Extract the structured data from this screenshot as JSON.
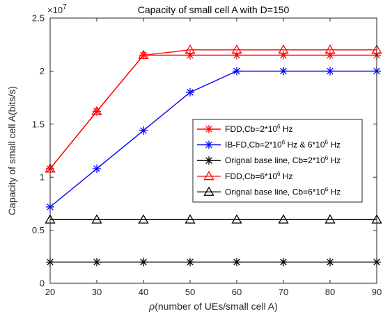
{
  "chart_data": {
    "type": "line",
    "title": "Capacity of small cell A with D=150",
    "xlabel": "ρ(number of UEs/small cell A)",
    "ylabel": "Capacity of small cell A(bits/s)",
    "y_multiplier": "×10",
    "y_multiplier_exp": "7",
    "x": [
      20,
      30,
      40,
      50,
      60,
      70,
      80,
      90
    ],
    "xlim": [
      20,
      90
    ],
    "ylim": [
      0,
      2.5
    ],
    "xticks": [
      "20",
      "30",
      "40",
      "50",
      "60",
      "70",
      "80",
      "90"
    ],
    "yticks": [
      "0",
      "0.5",
      "1",
      "1.5",
      "2",
      "2.5"
    ],
    "xtick_values": [
      20,
      30,
      40,
      50,
      60,
      70,
      80,
      90
    ],
    "ytick_values": [
      0,
      0.5,
      1,
      1.5,
      2,
      2.5
    ],
    "grid": false,
    "legend_position": "right",
    "series": [
      {
        "name_parts": [
          "FDD,Cb=2*10",
          "6",
          " Hz"
        ],
        "values": [
          1.08,
          1.62,
          2.15,
          2.15,
          2.15,
          2.15,
          2.15,
          2.15
        ],
        "color": "#ff0000",
        "marker": "star"
      },
      {
        "name_parts": [
          "IB-FD,Cb=2*10",
          "6",
          " Hz & 6*10",
          "6",
          " Hz"
        ],
        "values": [
          0.72,
          1.08,
          1.44,
          1.8,
          2.0,
          2.0,
          2.0,
          2.0
        ],
        "color": "#0000ff",
        "marker": "star"
      },
      {
        "name_parts": [
          "Orignal base line, Cb=2*10",
          "6",
          " Hz"
        ],
        "values": [
          0.2,
          0.2,
          0.2,
          0.2,
          0.2,
          0.2,
          0.2,
          0.2
        ],
        "color": "#000000",
        "marker": "star"
      },
      {
        "name_parts": [
          "FDD,Cb=6*10",
          "6",
          " Hz"
        ],
        "values": [
          1.08,
          1.62,
          2.15,
          2.2,
          2.2,
          2.2,
          2.2,
          2.2
        ],
        "color": "#ff0000",
        "marker": "triangle"
      },
      {
        "name_parts": [
          "Orignal base line, Cb=6*10",
          "6",
          " Hz"
        ],
        "values": [
          0.6,
          0.6,
          0.6,
          0.6,
          0.6,
          0.6,
          0.6,
          0.6
        ],
        "color": "#000000",
        "marker": "triangle"
      }
    ]
  }
}
